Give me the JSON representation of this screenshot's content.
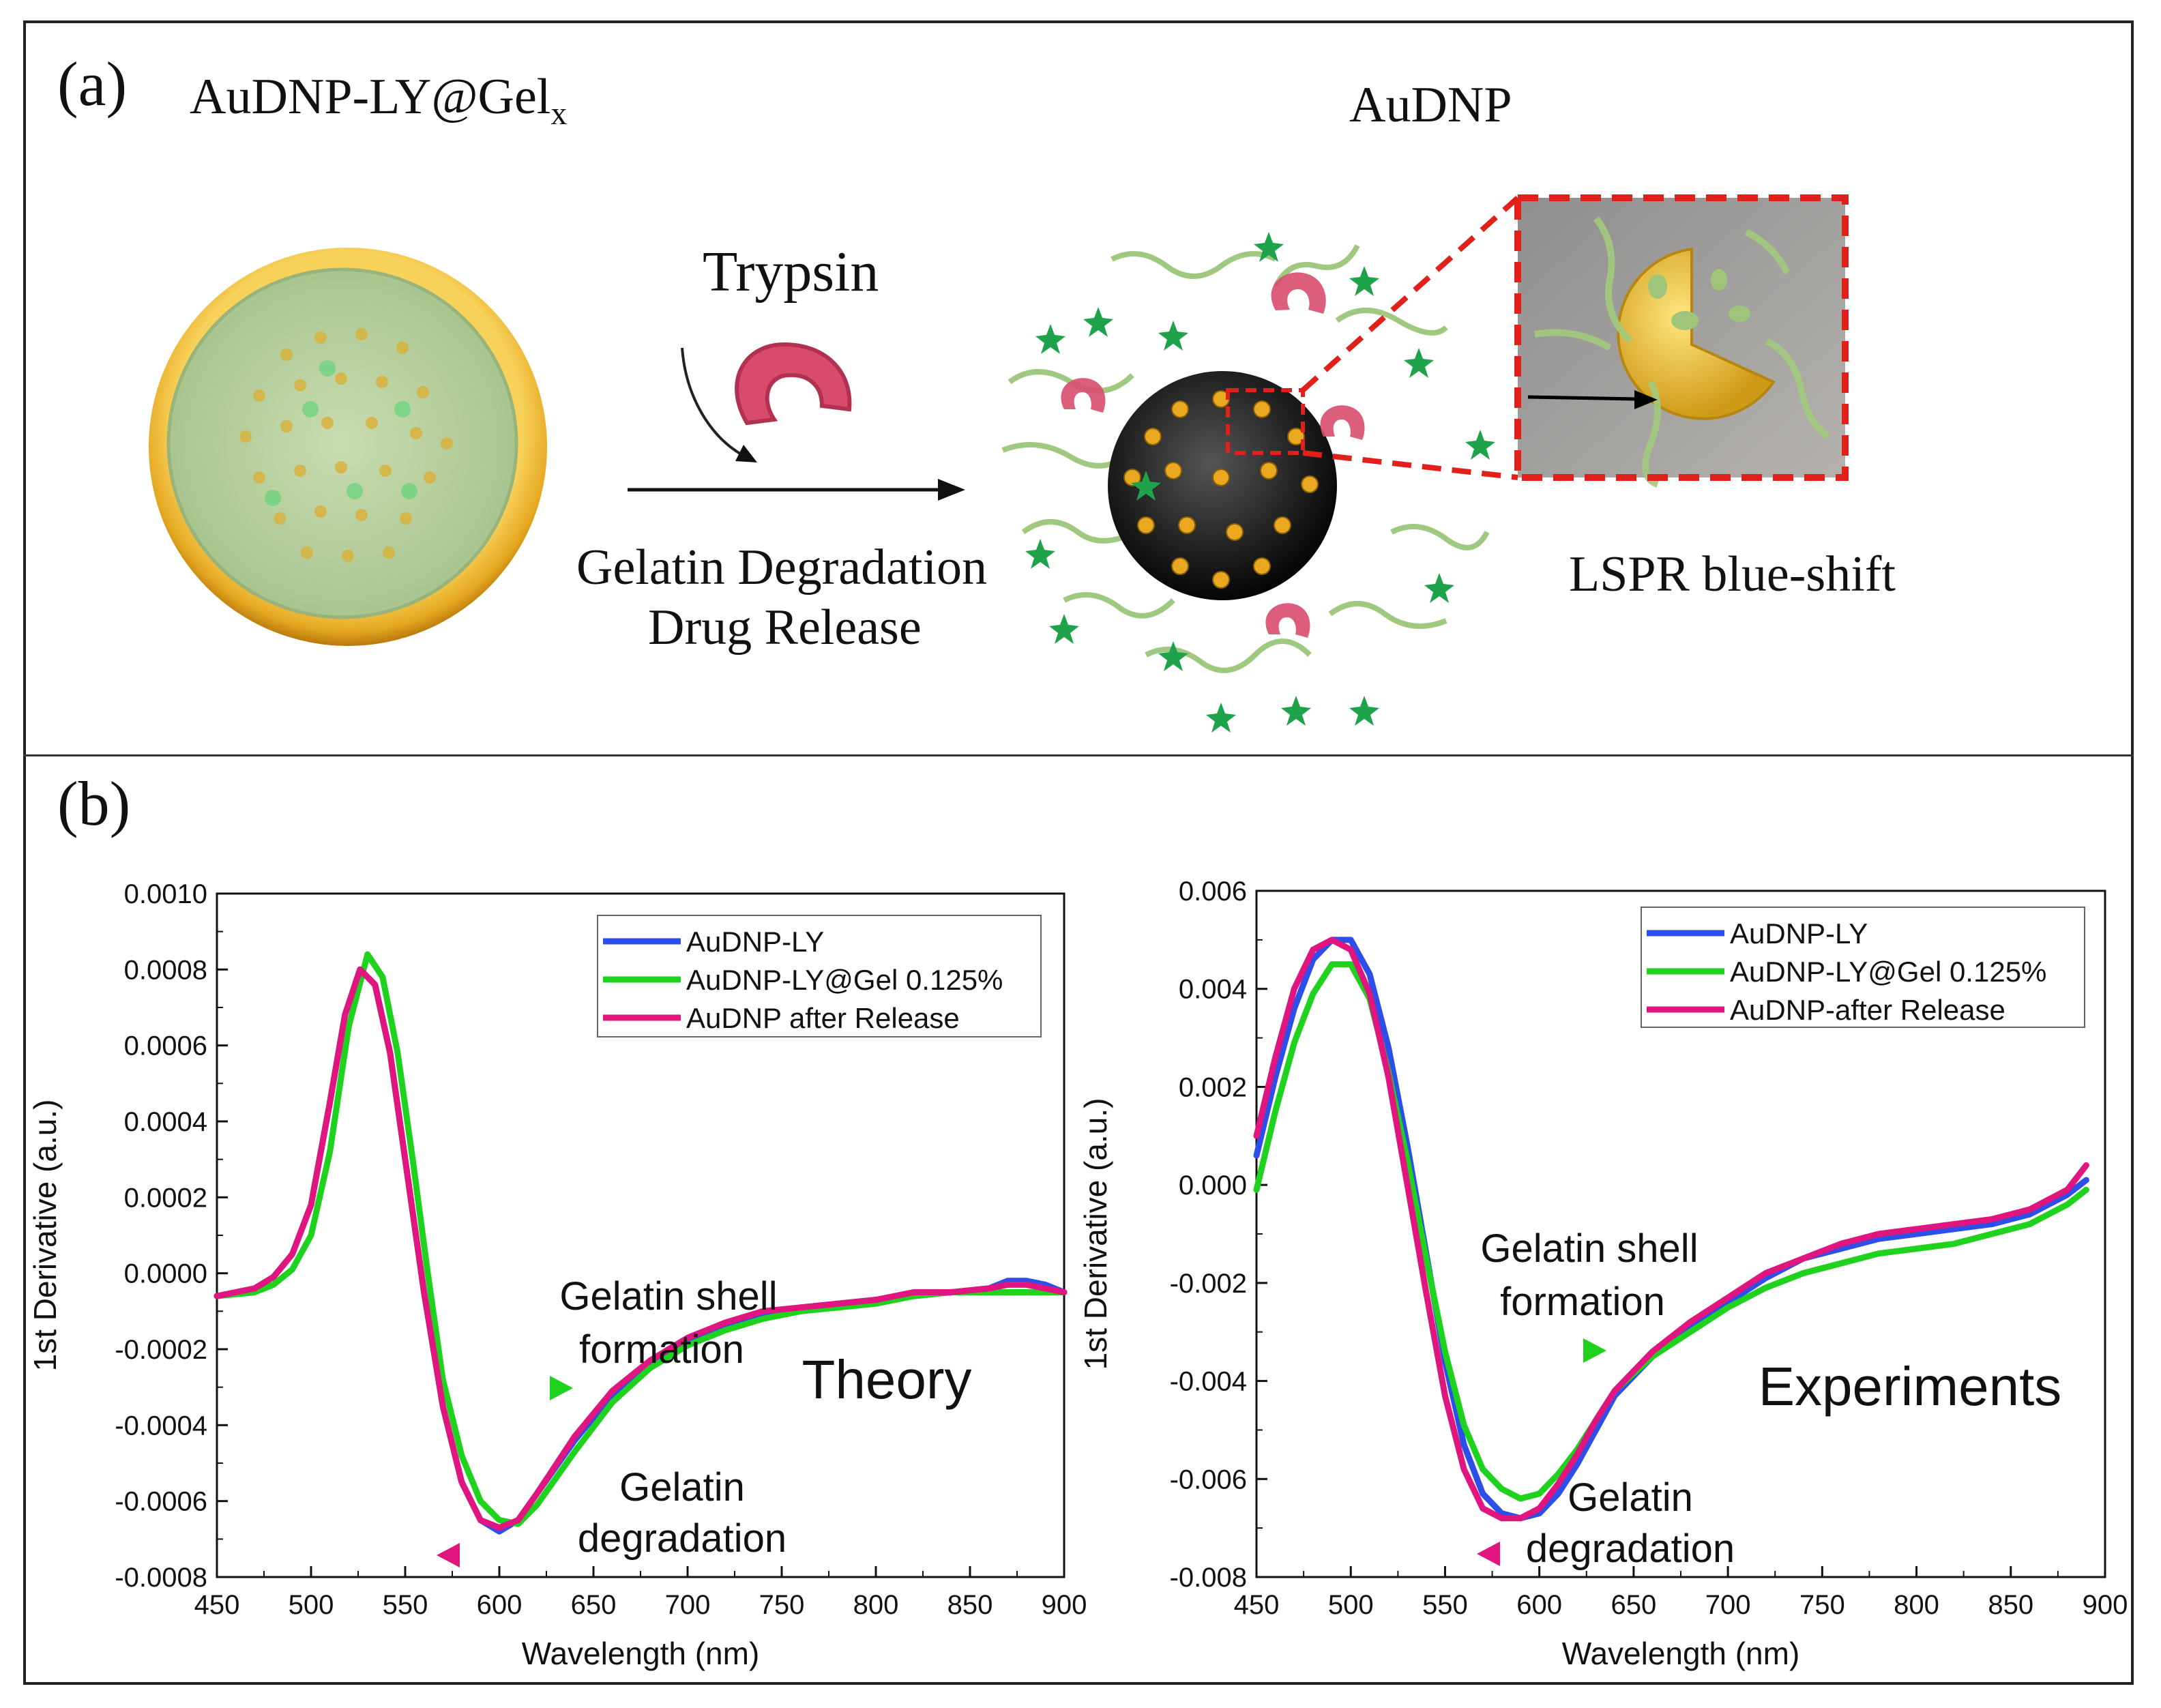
{
  "panel_a": {
    "label": "(a)",
    "left_title": "AuDNP-LY@Gel",
    "left_title_sub": "x",
    "right_title": "AuDNP",
    "enzyme": "Trypsin",
    "process_line1": "Gelatin Degradation",
    "process_line2": "Drug Release",
    "result": "LSPR blue-shift"
  },
  "panel_b": {
    "label": "(b)"
  },
  "colors": {
    "blue": "#2b4fe8",
    "green": "#1ed21e",
    "magenta": "#e0157f",
    "frame": "#222222"
  },
  "chart_data": [
    {
      "type": "line",
      "title": "Theory",
      "xlabel": "Wavelength (nm)",
      "ylabel": "1st Derivative (a.u.)",
      "xlim": [
        450,
        900
      ],
      "ylim": [
        -0.0008,
        0.001
      ],
      "xticks": [
        "450",
        "500",
        "550",
        "600",
        "650",
        "700",
        "750",
        "800",
        "850",
        "900"
      ],
      "yticks": [
        "-0.0008",
        "-0.0006",
        "-0.0004",
        "-0.0002",
        "0.0000",
        "0.0002",
        "0.0004",
        "0.0006",
        "0.0008",
        "0.0010"
      ],
      "legend": [
        "AuDNP-LY",
        "AuDNP-LY@Gel 0.125%",
        "AuDNP after Release"
      ],
      "annotations": {
        "shell_line1": "Gelatin shell",
        "shell_line2": "formation",
        "degr_line1": "Gelatin",
        "degr_line2": "degradation"
      },
      "series": [
        {
          "name": "AuDNP-LY",
          "color": "#2b4fe8",
          "x": [
            450,
            470,
            480,
            490,
            500,
            510,
            518,
            526,
            534,
            542,
            550,
            560,
            570,
            580,
            590,
            600,
            610,
            620,
            640,
            660,
            680,
            700,
            720,
            740,
            760,
            780,
            800,
            820,
            840,
            860,
            870,
            880,
            890,
            900
          ],
          "y": [
            -6e-05,
            -4e-05,
            -1e-05,
            5e-05,
            0.00018,
            0.00045,
            0.00068,
            0.0008,
            0.00076,
            0.00058,
            0.0003,
            -5e-05,
            -0.00035,
            -0.00055,
            -0.00065,
            -0.00068,
            -0.00065,
            -0.00058,
            -0.00044,
            -0.00032,
            -0.00024,
            -0.00018,
            -0.00014,
            -0.00011,
            -9e-05,
            -8e-05,
            -7e-05,
            -6e-05,
            -5e-05,
            -4e-05,
            -2e-05,
            -2e-05,
            -3e-05,
            -5e-05
          ]
        },
        {
          "name": "AuDNP-LY@Gel 0.125%",
          "color": "#1ed21e",
          "x": [
            450,
            470,
            480,
            490,
            500,
            510,
            520,
            530,
            538,
            546,
            554,
            562,
            570,
            580,
            590,
            600,
            610,
            620,
            640,
            660,
            680,
            700,
            720,
            740,
            760,
            780,
            800,
            820,
            840,
            860,
            870,
            880,
            890,
            900
          ],
          "y": [
            -6e-05,
            -5e-05,
            -3e-05,
            1e-05,
            0.0001,
            0.00032,
            0.00065,
            0.00084,
            0.00078,
            0.00058,
            0.0003,
            0.0,
            -0.00028,
            -0.00048,
            -0.0006,
            -0.00065,
            -0.00066,
            -0.00061,
            -0.00047,
            -0.00034,
            -0.00025,
            -0.00019,
            -0.00015,
            -0.00012,
            -0.0001,
            -9e-05,
            -8e-05,
            -6e-05,
            -5e-05,
            -5e-05,
            -5e-05,
            -5e-05,
            -5e-05,
            -5e-05
          ]
        },
        {
          "name": "AuDNP after Release",
          "color": "#e0157f",
          "x": [
            450,
            470,
            480,
            490,
            500,
            510,
            518,
            526,
            534,
            542,
            550,
            560,
            570,
            580,
            590,
            600,
            610,
            620,
            640,
            660,
            680,
            700,
            720,
            740,
            760,
            780,
            800,
            820,
            840,
            860,
            870,
            880,
            890,
            900
          ],
          "y": [
            -6e-05,
            -4e-05,
            -1e-05,
            5e-05,
            0.00018,
            0.00045,
            0.00068,
            0.0008,
            0.00076,
            0.00058,
            0.0003,
            -5e-05,
            -0.00035,
            -0.00055,
            -0.00065,
            -0.00067,
            -0.00065,
            -0.00058,
            -0.00043,
            -0.00031,
            -0.00023,
            -0.00017,
            -0.00013,
            -0.0001,
            -9e-05,
            -8e-05,
            -7e-05,
            -5e-05,
            -5e-05,
            -4e-05,
            -3e-05,
            -3e-05,
            -4e-05,
            -5e-05
          ]
        }
      ]
    },
    {
      "type": "line",
      "title": "Experiments",
      "xlabel": "Wavelength (nm)",
      "ylabel": "1st Derivative (a.u.)",
      "xlim": [
        450,
        900
      ],
      "ylim": [
        -0.008,
        0.006
      ],
      "xticks": [
        "450",
        "500",
        "550",
        "600",
        "650",
        "700",
        "750",
        "800",
        "850",
        "900"
      ],
      "yticks": [
        "-0.008",
        "-0.006",
        "-0.004",
        "-0.002",
        "0.000",
        "0.002",
        "0.004",
        "0.006"
      ],
      "legend": [
        "AuDNP-LY",
        "AuDNP-LY@Gel 0.125%",
        "AuDNP-after Release"
      ],
      "annotations": {
        "shell_line1": "Gelatin shell",
        "shell_line2": "formation",
        "degr_line1": "Gelatin",
        "degr_line2": "degradation"
      },
      "series": [
        {
          "name": "AuDNP-LY",
          "color": "#2b4fe8",
          "x": [
            450,
            460,
            470,
            480,
            490,
            500,
            510,
            520,
            530,
            540,
            550,
            560,
            570,
            580,
            590,
            600,
            610,
            620,
            630,
            640,
            660,
            680,
            700,
            720,
            740,
            760,
            780,
            800,
            820,
            840,
            860,
            880,
            890
          ],
          "y": [
            0.0006,
            0.0022,
            0.0036,
            0.0046,
            0.005,
            0.005,
            0.0043,
            0.0028,
            0.0008,
            -0.0014,
            -0.0036,
            -0.0053,
            -0.0063,
            -0.0067,
            -0.0068,
            -0.0067,
            -0.0063,
            -0.0057,
            -0.005,
            -0.0043,
            -0.0035,
            -0.0029,
            -0.0024,
            -0.0019,
            -0.0015,
            -0.0013,
            -0.0011,
            -0.001,
            -0.0009,
            -0.0008,
            -0.0006,
            -0.0002,
            0.0001
          ]
        },
        {
          "name": "AuDNP-LY@Gel 0.125%",
          "color": "#1ed21e",
          "x": [
            450,
            460,
            470,
            480,
            490,
            500,
            510,
            520,
            530,
            540,
            550,
            560,
            570,
            580,
            590,
            600,
            610,
            620,
            630,
            640,
            660,
            680,
            700,
            720,
            740,
            760,
            780,
            800,
            820,
            840,
            860,
            880,
            890
          ],
          "y": [
            -0.0001,
            0.0015,
            0.0029,
            0.0039,
            0.0045,
            0.0045,
            0.0038,
            0.0023,
            0.0005,
            -0.0015,
            -0.0034,
            -0.0049,
            -0.0058,
            -0.0062,
            -0.0064,
            -0.0063,
            -0.0059,
            -0.0054,
            -0.0048,
            -0.0042,
            -0.0035,
            -0.003,
            -0.0025,
            -0.0021,
            -0.0018,
            -0.0016,
            -0.0014,
            -0.0013,
            -0.0012,
            -0.001,
            -0.0008,
            -0.0004,
            -0.0001
          ]
        },
        {
          "name": "AuDNP-after Release",
          "color": "#e0157f",
          "x": [
            450,
            460,
            470,
            480,
            490,
            500,
            510,
            520,
            530,
            540,
            550,
            560,
            570,
            580,
            590,
            600,
            610,
            620,
            630,
            640,
            660,
            680,
            700,
            720,
            740,
            760,
            780,
            800,
            820,
            840,
            860,
            880,
            890
          ],
          "y": [
            0.001,
            0.0026,
            0.004,
            0.0048,
            0.005,
            0.0048,
            0.0039,
            0.0022,
            0.0,
            -0.0022,
            -0.0043,
            -0.0058,
            -0.0066,
            -0.0068,
            -0.0068,
            -0.0066,
            -0.0061,
            -0.0055,
            -0.0048,
            -0.0042,
            -0.0034,
            -0.0028,
            -0.0023,
            -0.0018,
            -0.0015,
            -0.0012,
            -0.001,
            -0.0009,
            -0.0008,
            -0.0007,
            -0.0005,
            -0.0001,
            0.0004
          ]
        }
      ]
    }
  ]
}
